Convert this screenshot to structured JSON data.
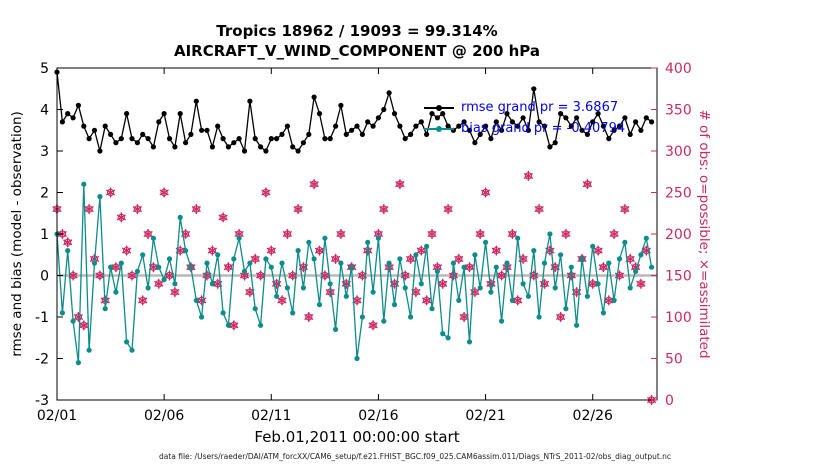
{
  "page": {
    "title_line1": "Tropics 18962 / 19093 = 99.314%",
    "title_line2": "AIRCRAFT_V_WIND_COMPONENT @ 200 hPa",
    "xlabel": "Feb.01,2011 00:00:00 start",
    "ylabel_left": "rmse and bias (model - observation)",
    "ylabel_right": "# of obs: o=possible; ×=assimilated",
    "legend": {
      "rmse_label": "rmse grand pr = 3.6867",
      "bias_label": "bias grand pr = -0.40794"
    },
    "caption": "data file: /Users/raeder/DAI/ATM_forcXX/CAM6_setup/f.e21.FHIST_BGC.f09_025.CAM6assim.011/Diags_NTrS_2011-02/obs_diag_output.nc",
    "colors": {
      "rmse": "#000000",
      "bias": "#0d8c8c",
      "obs": "#cc2a63",
      "legend_text": "#0000ee",
      "zero_line": "#b8b8b8"
    }
  },
  "chart_data": {
    "type": "line",
    "title": "Tropics 18962 / 19093 = 99.314%",
    "subtitle": "AIRCRAFT_V_WIND_COMPONENT @ 200 hPa",
    "xlabel": "Feb.01,2011 00:00:00 start",
    "ylabel_left": "rmse and bias (model - observation)",
    "ylabel_right": "# of obs: o=possible; ×=assimilated",
    "x_ticks": [
      "02/01",
      "02/06",
      "02/11",
      "02/16",
      "02/21",
      "02/26"
    ],
    "x_tick_days": [
      1,
      6,
      11,
      16,
      21,
      26
    ],
    "x_range_days": [
      1,
      29
    ],
    "x_start_day": 1,
    "x_step_days": 0.25,
    "ylim_left": [
      -3,
      5
    ],
    "yticks_left": [
      -3,
      -2,
      -1,
      0,
      1,
      2,
      3,
      4,
      5
    ],
    "ylim_right": [
      0,
      400
    ],
    "yticks_right": [
      0,
      50,
      100,
      150,
      200,
      250,
      300,
      350,
      400
    ],
    "grid": false,
    "legend_position": "top-right-inside",
    "zero_line": 0,
    "series": [
      {
        "name": "rmse",
        "grand_pr": 3.6867,
        "axis": "left",
        "color": "#000000",
        "marker": "filled-circle",
        "values": [
          4.9,
          3.7,
          3.9,
          3.8,
          4.1,
          3.6,
          3.3,
          3.5,
          3.0,
          3.6,
          3.4,
          3.2,
          3.3,
          3.9,
          3.3,
          3.2,
          3.4,
          3.3,
          3.1,
          3.7,
          3.9,
          3.3,
          3.1,
          3.9,
          3.2,
          3.4,
          4.2,
          3.5,
          3.5,
          3.1,
          3.6,
          3.3,
          3.1,
          3.2,
          3.3,
          3.0,
          4.2,
          3.3,
          3.1,
          3.0,
          3.3,
          3.3,
          3.4,
          3.6,
          3.1,
          3.0,
          3.2,
          3.4,
          4.3,
          3.9,
          3.3,
          3.3,
          3.6,
          4.1,
          3.4,
          3.5,
          3.6,
          3.4,
          3.7,
          3.6,
          3.8,
          4.0,
          4.4,
          3.9,
          3.6,
          3.3,
          3.4,
          3.6,
          3.7,
          3.4,
          3.9,
          3.8,
          3.9,
          3.6,
          3.5,
          3.6,
          3.7,
          3.5,
          3.2,
          3.4,
          3.6,
          3.3,
          3.7,
          3.5,
          3.9,
          3.7,
          3.6,
          3.8,
          3.5,
          4.5,
          3.7,
          3.6,
          3.1,
          3.2,
          3.9,
          3.8,
          3.6,
          3.8,
          3.5,
          3.4,
          3.7,
          3.9,
          3.6,
          3.3,
          3.5,
          3.6,
          3.8,
          3.4,
          3.7,
          3.5,
          3.8,
          3.7
        ]
      },
      {
        "name": "bias",
        "grand_pr": -0.40794,
        "axis": "left",
        "color": "#0d8c8c",
        "marker": "filled-circle",
        "values": [
          1.0,
          -0.9,
          0.6,
          -1.1,
          -2.1,
          2.2,
          -1.8,
          0.3,
          1.9,
          -0.8,
          0.2,
          -0.4,
          0.3,
          -1.6,
          -1.8,
          0.1,
          0.5,
          -0.3,
          0.9,
          0.2,
          -0.1,
          0.4,
          -0.2,
          1.4,
          0.6,
          0.2,
          -0.6,
          -1.0,
          0.3,
          -0.2,
          0.5,
          -0.9,
          -1.2,
          0.4,
          0.9,
          0.1,
          0.3,
          -0.8,
          -1.2,
          0.4,
          0.2,
          -0.5,
          0.3,
          -0.3,
          -0.9,
          0.6,
          -0.3,
          0.8,
          0.4,
          -0.7,
          0.9,
          -0.2,
          -1.3,
          0.3,
          -0.5,
          0.2,
          -2.0,
          -1.0,
          0.8,
          -0.4,
          0.9,
          -1.1,
          0.3,
          -0.7,
          0.4,
          -0.3,
          -1.0,
          0.5,
          -0.2,
          0.7,
          -0.8,
          0.1,
          -1.4,
          -1.5,
          0.3,
          -0.6,
          0.2,
          -1.6,
          0.5,
          -0.3,
          0.8,
          -0.4,
          0.2,
          -1.1,
          0.3,
          -0.6,
          0.9,
          -0.2,
          -0.5,
          0.6,
          -1.0,
          0.3,
          1.0,
          -0.3,
          0.5,
          -0.8,
          0.2,
          -1.2,
          0.4,
          -0.5,
          0.7,
          -0.2,
          -0.9,
          0.3,
          -0.6,
          0.4,
          0.8,
          -0.3,
          0.1,
          0.5,
          0.9,
          0.2
        ]
      },
      {
        "name": "n_obs (o=possible, ×=assimilated; possible ≈ assimilated at 99.314%)",
        "axis": "right",
        "color": "#cc2a63",
        "marker": "circle-plus-asterisk",
        "values": [
          230,
          200,
          190,
          150,
          100,
          90,
          230,
          170,
          150,
          120,
          250,
          160,
          220,
          180,
          150,
          230,
          120,
          200,
          160,
          140,
          250,
          150,
          130,
          180,
          200,
          160,
          230,
          120,
          150,
          180,
          140,
          220,
          160,
          90,
          200,
          150,
          130,
          170,
          150,
          250,
          180,
          140,
          120,
          200,
          150,
          230,
          160,
          100,
          260,
          180,
          150,
          130,
          170,
          200,
          140,
          160,
          120,
          150,
          180,
          90,
          200,
          230,
          160,
          140,
          260,
          150,
          170,
          130,
          180,
          120,
          200,
          160,
          140,
          230,
          150,
          170,
          100,
          160,
          130,
          200,
          250,
          140,
          180,
          150,
          160,
          200,
          120,
          170,
          270,
          150,
          230,
          140,
          180,
          160,
          100,
          200,
          150,
          130,
          170,
          260,
          140,
          180,
          160,
          120,
          200,
          150,
          230,
          170,
          160,
          140,
          180,
          0
        ]
      }
    ]
  }
}
